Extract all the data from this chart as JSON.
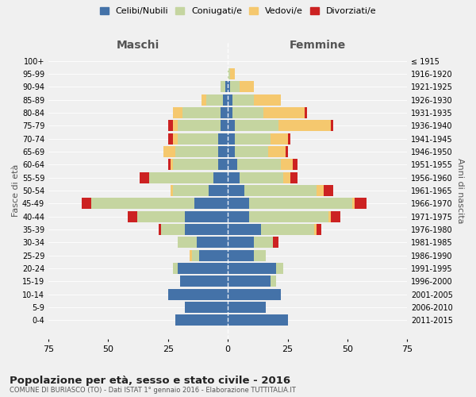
{
  "age_groups": [
    "0-4",
    "5-9",
    "10-14",
    "15-19",
    "20-24",
    "25-29",
    "30-34",
    "35-39",
    "40-44",
    "45-49",
    "50-54",
    "55-59",
    "60-64",
    "65-69",
    "70-74",
    "75-79",
    "80-84",
    "85-89",
    "90-94",
    "95-99",
    "100+"
  ],
  "birth_years": [
    "2011-2015",
    "2006-2010",
    "2001-2005",
    "1996-2000",
    "1991-1995",
    "1986-1990",
    "1981-1985",
    "1976-1980",
    "1971-1975",
    "1966-1970",
    "1961-1965",
    "1956-1960",
    "1951-1955",
    "1946-1950",
    "1941-1945",
    "1936-1940",
    "1931-1935",
    "1926-1930",
    "1921-1925",
    "1916-1920",
    "≤ 1915"
  ],
  "colors": {
    "celibe": "#4472a8",
    "coniugato": "#c5d5a0",
    "vedovo": "#f5c86e",
    "divorziato": "#cc2222"
  },
  "maschi": {
    "celibe": [
      22,
      18,
      25,
      20,
      21,
      12,
      13,
      18,
      18,
      14,
      8,
      6,
      4,
      4,
      4,
      3,
      3,
      2,
      1,
      0,
      0
    ],
    "coniugato": [
      0,
      0,
      0,
      0,
      2,
      3,
      8,
      10,
      20,
      43,
      15,
      27,
      19,
      18,
      17,
      18,
      16,
      7,
      2,
      0,
      0
    ],
    "vedovo": [
      0,
      0,
      0,
      0,
      0,
      1,
      0,
      0,
      0,
      0,
      1,
      0,
      1,
      5,
      2,
      2,
      4,
      2,
      0,
      0,
      0
    ],
    "divorziato": [
      0,
      0,
      0,
      0,
      0,
      0,
      0,
      1,
      4,
      4,
      0,
      4,
      1,
      0,
      2,
      2,
      0,
      0,
      0,
      0,
      0
    ]
  },
  "femmine": {
    "nubile": [
      25,
      16,
      22,
      18,
      20,
      11,
      11,
      14,
      9,
      9,
      7,
      5,
      4,
      3,
      3,
      3,
      2,
      2,
      1,
      0,
      0
    ],
    "coniugata": [
      0,
      0,
      0,
      2,
      3,
      5,
      8,
      22,
      33,
      43,
      30,
      18,
      18,
      14,
      15,
      18,
      13,
      9,
      4,
      1,
      0
    ],
    "vedova": [
      0,
      0,
      0,
      0,
      0,
      0,
      0,
      1,
      1,
      1,
      3,
      3,
      5,
      7,
      7,
      22,
      17,
      11,
      6,
      2,
      0
    ],
    "divorziata": [
      0,
      0,
      0,
      0,
      0,
      0,
      2,
      2,
      4,
      5,
      4,
      3,
      2,
      1,
      1,
      1,
      1,
      0,
      0,
      0,
      0
    ]
  },
  "xlim": 75,
  "title": "Popolazione per età, sesso e stato civile - 2016",
  "subtitle": "COMUNE DI BURIASCO (TO) - Dati ISTAT 1° gennaio 2016 - Elaborazione TUTTITALIA.IT",
  "ylabel_left": "Fasce di età",
  "ylabel_right": "Anni di nascita",
  "xlabel_left": "Maschi",
  "xlabel_right": "Femmine",
  "bg_color": "#f0f0f0",
  "bar_height": 0.85
}
